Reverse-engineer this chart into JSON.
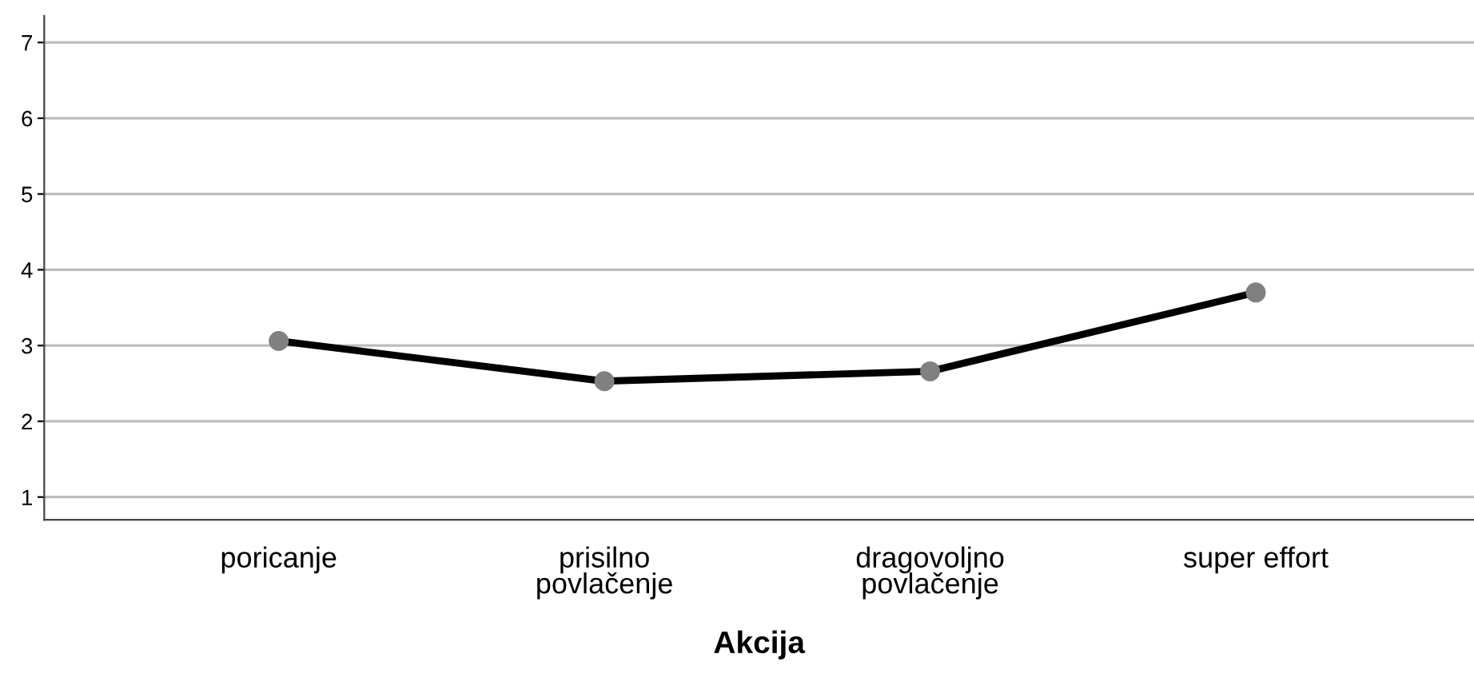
{
  "chart_data": {
    "type": "line",
    "xlabel": "Akcija",
    "categories": [
      "poricanje",
      "prisilno\npovlačenje",
      "dragovoljno\npovlačenje",
      "super effort"
    ],
    "series": [
      {
        "color": "#000000",
        "values": [
          3.06,
          2.53,
          2.66,
          3.7
        ]
      }
    ],
    "ylim": [
      0.7,
      7.35
    ],
    "yticks": [
      1,
      2,
      3,
      4,
      5,
      6,
      7
    ],
    "grid": "y",
    "marker": "circle",
    "line_style": "solid"
  }
}
